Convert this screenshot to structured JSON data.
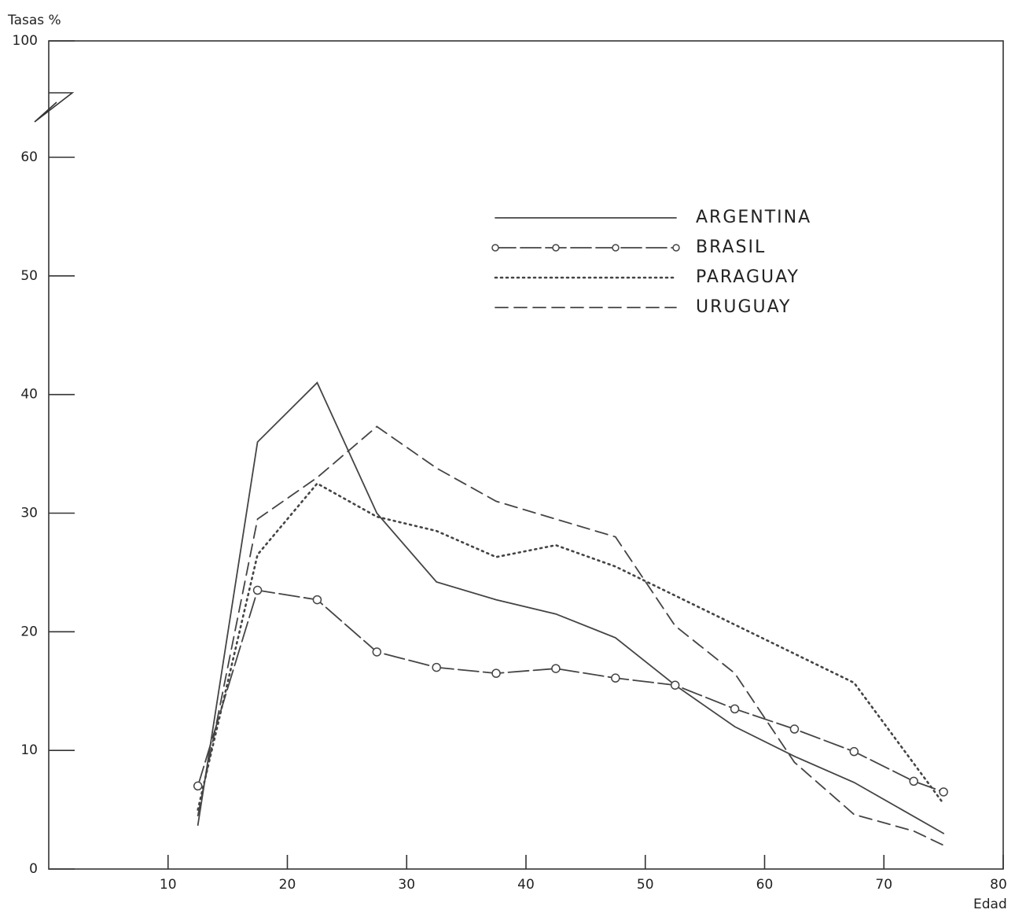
{
  "chart_data": {
    "type": "line",
    "y_label": "Tasas %",
    "x_label": "Edad",
    "xlim": [
      0,
      80
    ],
    "xticks": [
      10,
      20,
      30,
      40,
      50,
      60,
      70,
      80
    ],
    "ylim": [
      0,
      100
    ],
    "yticks": [
      0,
      10,
      20,
      30,
      40,
      50,
      60,
      100
    ],
    "y_break": [
      60,
      100
    ],
    "series": [
      {
        "name": "ARGENTINA",
        "color": "#444",
        "style": "solid",
        "x": [
          12.5,
          17.5,
          22.5,
          27.5,
          32.5,
          37.5,
          42.5,
          47.5,
          52.5,
          57.5,
          62.5,
          67.5,
          75
        ],
        "values": [
          3.7,
          36,
          41,
          30,
          24.2,
          22.7,
          21.5,
          19.5,
          15.5,
          12,
          9.5,
          7.3,
          3
        ]
      },
      {
        "name": "BRASIL",
        "color": "#444",
        "style": "dash-circle",
        "x": [
          12.5,
          17.5,
          22.5,
          27.5,
          32.5,
          37.5,
          42.5,
          47.5,
          52.5,
          57.5,
          62.5,
          67.5,
          72.5,
          75
        ],
        "values": [
          7,
          23.5,
          22.7,
          18.3,
          17,
          16.5,
          16.9,
          16.1,
          15.5,
          13.5,
          11.8,
          9.9,
          7.4,
          6.5
        ]
      },
      {
        "name": "PARAGUAY",
        "color": "#444",
        "style": "dotted",
        "x": [
          12.5,
          17.5,
          22.5,
          27.5,
          32.5,
          37.5,
          42.5,
          47.5,
          67.5,
          75
        ],
        "values": [
          5,
          26.5,
          32.5,
          29.7,
          28.5,
          26.3,
          27.3,
          25.5,
          15.7,
          5.5
        ]
      },
      {
        "name": "URUGUAY",
        "color": "#444",
        "style": "dashed",
        "x": [
          12.5,
          17.5,
          22.5,
          27.5,
          32.5,
          37.5,
          42.5,
          47.5,
          52.5,
          57.5,
          62.5,
          67.5,
          72.5,
          75
        ],
        "values": [
          4.5,
          29.5,
          33,
          37.3,
          33.8,
          31,
          29.5,
          28,
          20.5,
          16.5,
          9,
          4.6,
          3.2,
          2
        ]
      }
    ]
  }
}
